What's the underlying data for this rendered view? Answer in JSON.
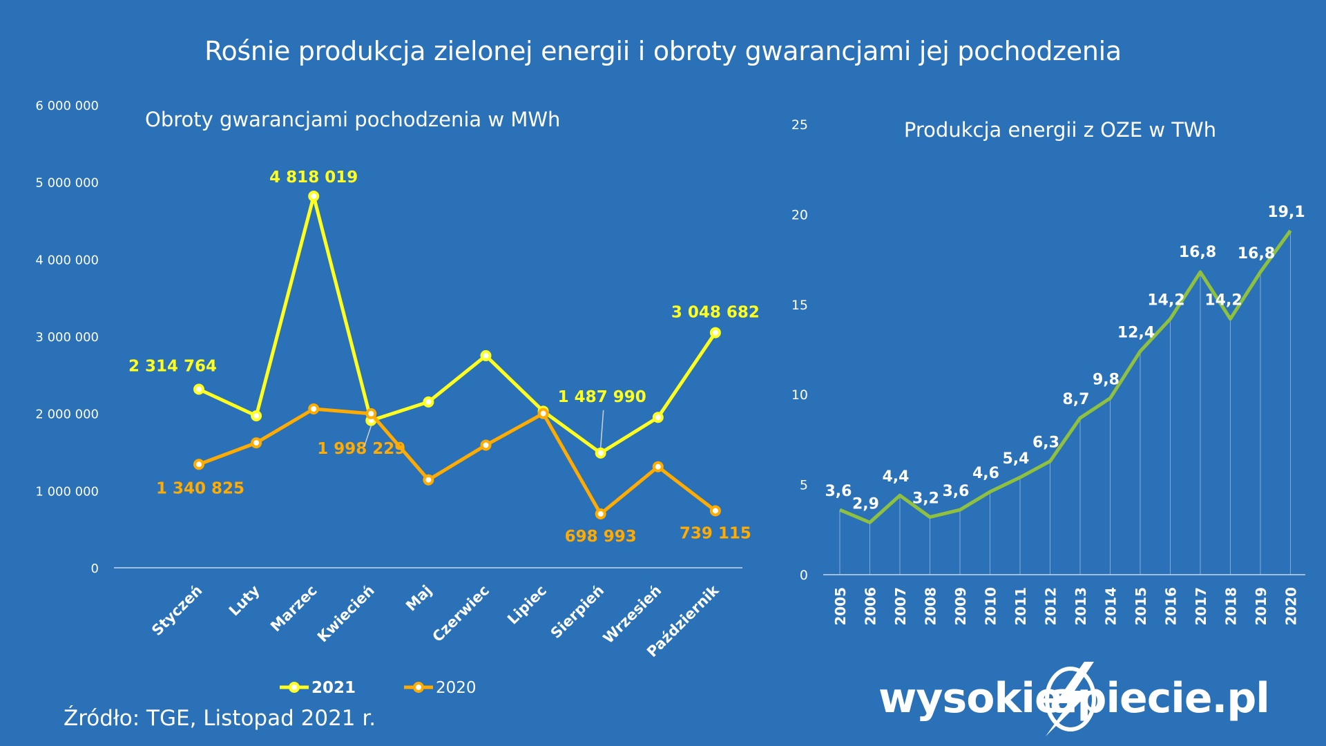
{
  "title": "Rośnie produkcja zielonej energii i obroty gwarancjami jej pochodzenia",
  "source": "Źródło: TGE, Listopad 2021 r.",
  "brand": {
    "left": "wysokie",
    "right": "apiecie.pl",
    "icon": "lightning-n-icon"
  },
  "colors": {
    "background": "#2b71b8",
    "series_2021": "#ffff1f",
    "series_2020": "#ffab00",
    "oze": "#8fc13f"
  },
  "chart_data": [
    {
      "type": "line",
      "title": "Obroty gwarancjami pochodzenia w MWh",
      "categories": [
        "Styczeń",
        "Luty",
        "Marzec",
        "Kwiecień",
        "Maj",
        "Czerwiec",
        "Lipiec",
        "Sierpień",
        "Wrzesień",
        "Październik"
      ],
      "ylim": [
        0,
        6000000
      ],
      "yticks": [
        "0",
        "1 000 000",
        "2 000 000",
        "3 000 000",
        "4 000 000",
        "5 000 000",
        "6 000 000"
      ],
      "legend_position": "bottom",
      "series": [
        {
          "name": "2021",
          "values": [
            2314764,
            1970000,
            4818019,
            1910000,
            2150000,
            2750000,
            2030000,
            1487990,
            1950000,
            3048682
          ],
          "labels": [
            "2 314 764",
            "",
            "4 818 019",
            "",
            "",
            "",
            "",
            "1 487 990",
            "",
            "3 048 682"
          ]
        },
        {
          "name": "2020",
          "values": [
            1340825,
            1620000,
            2060000,
            1998229,
            1140000,
            1590000,
            2000000,
            698993,
            1310000,
            739115
          ],
          "labels": [
            "1 340 825",
            "",
            "",
            "1 998 229",
            "",
            "",
            "",
            "698 993",
            "",
            "739 115"
          ]
        }
      ]
    },
    {
      "type": "line",
      "title": "Produkcja energii z OZE w TWh",
      "categories": [
        "2005",
        "2006",
        "2007",
        "2008",
        "2009",
        "2010",
        "2011",
        "2012",
        "2013",
        "2014",
        "2015",
        "2016",
        "2017",
        "2018",
        "2019",
        "2020"
      ],
      "ylim": [
        0,
        25
      ],
      "yticks": [
        "0",
        "5",
        "10",
        "15",
        "20",
        "25"
      ],
      "series": [
        {
          "values": [
            3.6,
            2.9,
            4.4,
            3.2,
            3.6,
            4.6,
            5.4,
            6.3,
            8.7,
            9.8,
            12.4,
            14.2,
            16.8,
            14.2,
            16.8,
            19.1
          ],
          "labels": [
            "3,6",
            "2,9",
            "4,4",
            "3,2",
            "3,6",
            "4,6",
            "5,4",
            "6,3",
            "8,7",
            "9,8",
            "12,4",
            "14,2",
            "16,8",
            "14,2",
            "16,8",
            "19,1"
          ]
        }
      ]
    }
  ]
}
